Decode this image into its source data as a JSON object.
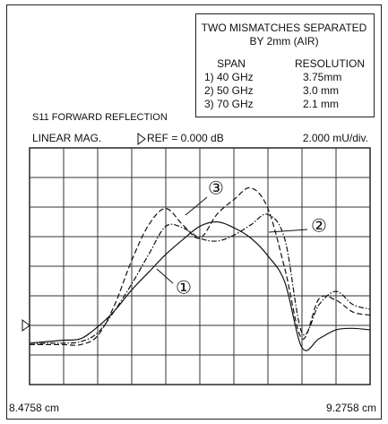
{
  "chart_data": {
    "type": "line",
    "title": "S11 FORWARD REFLECTION",
    "mode_label": "LINEAR MAG.",
    "reference_label": "REF = 0.000 dB",
    "scale_label": "2.000 mU/div.",
    "info_box": {
      "title_lines": [
        "TWO MISMATCHES SEPARATED",
        "BY 2mm (AIR)"
      ],
      "headers": [
        "SPAN",
        "RESOLUTION"
      ],
      "rows": [
        [
          "1) 40 GHz",
          "3.75mm"
        ],
        [
          "2) 50 GHz",
          "3.0 mm"
        ],
        [
          "3) 70 GHz",
          "2.1 mm"
        ]
      ]
    },
    "x": [
      8.4758,
      8.5158,
      8.5558,
      8.5958,
      8.6358,
      8.6758,
      8.7158,
      8.7558,
      8.7958,
      8.8358,
      8.8758,
      8.9158,
      8.9558,
      8.9958,
      9.0358,
      9.0758,
      9.1158,
      9.1558,
      9.1958,
      9.2358,
      9.2758
    ],
    "xlim": [
      8.4758,
      9.2758
    ],
    "xticks": [
      {
        "value": 8.4758,
        "label": "8.4758 cm"
      },
      8.5558,
      8.6358,
      8.7158,
      8.7958,
      8.8758,
      8.9558,
      9.0358,
      9.1158,
      9.1958,
      {
        "value": 9.2758,
        "label": "9.2758 cm"
      }
    ],
    "ylim": [
      -4,
      12
    ],
    "yticks": [
      -4,
      -2,
      0,
      2,
      4,
      6,
      8,
      10,
      12
    ],
    "reference_value": 0,
    "grid": true,
    "series": [
      {
        "name": "①",
        "color": "#111111",
        "dash": "solid",
        "values": [
          -1.2,
          -1.1,
          -1.0,
          -0.9,
          -0.1,
          1.0,
          2.4,
          3.6,
          4.8,
          5.8,
          6.7,
          7.0,
          6.6,
          5.9,
          4.7,
          2.9,
          -1.5,
          -0.9,
          -0.3,
          -0.2,
          -0.3
        ]
      },
      {
        "name": "②",
        "color": "#111111",
        "dash": "dashdot",
        "values": [
          -1.3,
          -1.2,
          -1.2,
          -1.1,
          -0.5,
          1.0,
          2.8,
          4.8,
          6.7,
          6.6,
          5.9,
          5.7,
          6.1,
          6.8,
          7.5,
          5.8,
          -0.5,
          1.4,
          2.3,
          1.4,
          1.1
        ]
      },
      {
        "name": "③",
        "color": "#111111",
        "dash": "dashed",
        "values": [
          -1.3,
          -1.3,
          -1.3,
          -1.3,
          -0.7,
          1.4,
          4.4,
          6.8,
          7.9,
          6.8,
          5.9,
          7.5,
          8.5,
          9.3,
          7.9,
          3.8,
          -0.9,
          1.8,
          1.7,
          0.9,
          0.7
        ]
      }
    ]
  }
}
